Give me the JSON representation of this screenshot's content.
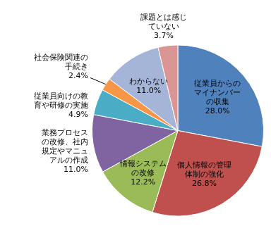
{
  "chart_data": {
    "type": "pie",
    "categories": [
      "従業員からのマイナンバーの収集",
      "個人情報の管理体制の強化",
      "情報システムの改修",
      "業務プロセスの改修、社内規定やマニュアルの作成",
      "従業員向けの教育や研修の実施",
      "社会保険関連の手続き",
      "わからない",
      "課題とは感じていない"
    ],
    "values": [
      28.0,
      26.8,
      12.2,
      11.0,
      4.9,
      2.4,
      11.0,
      3.7
    ],
    "value_labels": [
      "28.0%",
      "26.8%",
      "12.2%",
      "11.0%",
      "4.9%",
      "2.4%",
      "11.0%",
      "3.7%"
    ],
    "colors": [
      "#4f81bd",
      "#c0504d",
      "#9bbb59",
      "#8064a2",
      "#4bacc6",
      "#f79646",
      "#a5b5d8",
      "#d99694"
    ],
    "data_labels": true
  }
}
